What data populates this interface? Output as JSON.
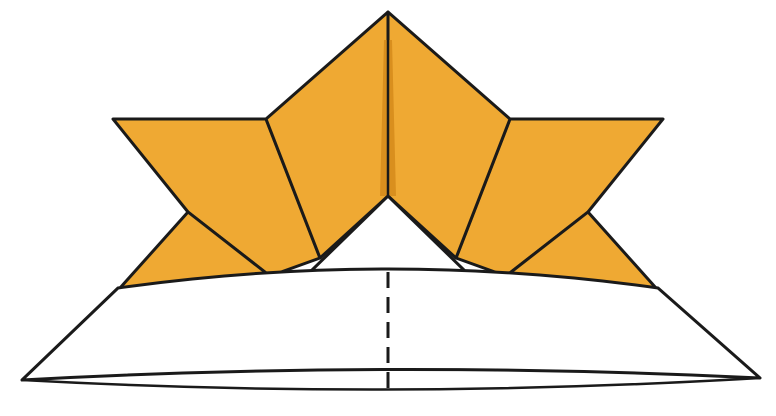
{
  "colors": {
    "paper_colored": "#efa933",
    "paper_white": "#ffffff",
    "line": "#1a1a1a",
    "shadow": "#d98f1e"
  },
  "diagram": {
    "subject": "origami-samurai-helmet",
    "fold_lines": [
      "valley-fold-dashed"
    ]
  }
}
